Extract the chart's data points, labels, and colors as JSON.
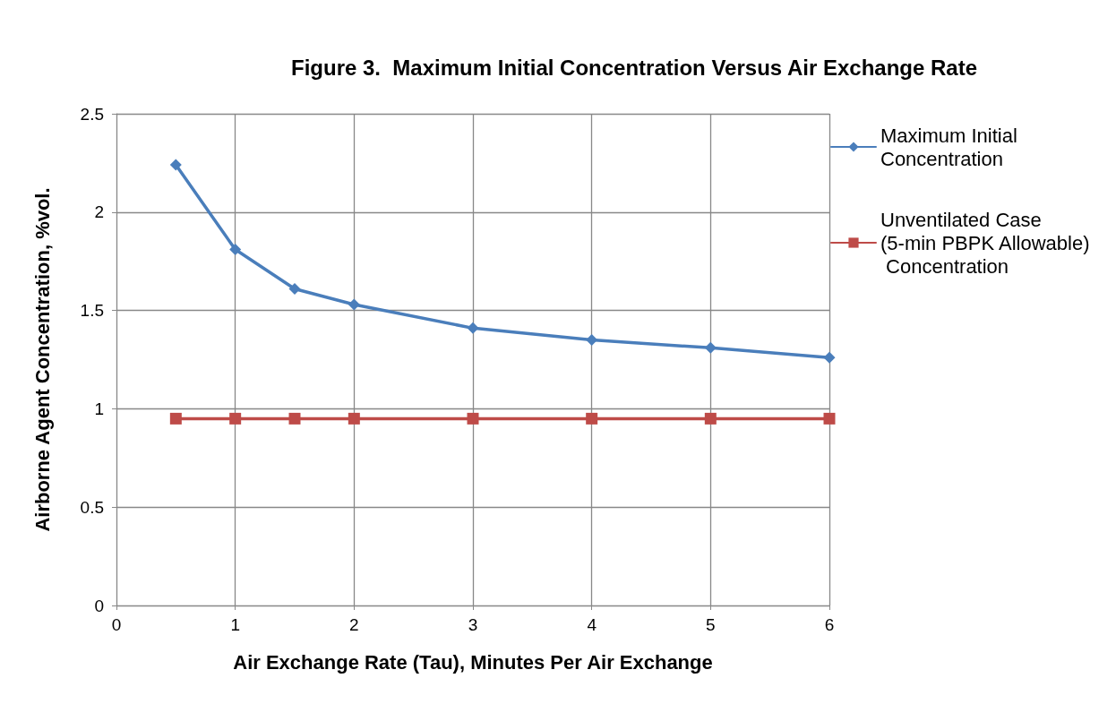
{
  "chart_data": {
    "type": "line",
    "title": "Figure 3.  Maximum Initial Concentration Versus Air Exchange Rate",
    "xlabel": "Air Exchange Rate (Tau), Minutes Per Air Exchange",
    "ylabel": "Airborne Agent Concentration, %vol.",
    "x": [
      0.5,
      1,
      1.5,
      2,
      3,
      4,
      5,
      6
    ],
    "series": [
      {
        "name": "Maximum Initial Concentration",
        "color": "#4a7ebb",
        "marker": "diamond",
        "values": [
          2.24,
          1.81,
          1.61,
          1.53,
          1.41,
          1.35,
          1.31,
          1.26
        ]
      },
      {
        "name": "Unventilated Case (5-min PBPK Allowable) Concentration",
        "color": "#be4b48",
        "marker": "square",
        "values": [
          0.95,
          0.95,
          0.95,
          0.95,
          0.95,
          0.95,
          0.95,
          0.95
        ]
      }
    ],
    "xlim": [
      0,
      6
    ],
    "xticks": [
      0,
      1,
      2,
      3,
      4,
      5,
      6
    ],
    "ylim": [
      0,
      2.5
    ],
    "yticks": [
      0,
      0.5,
      1,
      1.5,
      2,
      2.5
    ],
    "grid": true,
    "legend": "right",
    "line_style": "solid"
  }
}
